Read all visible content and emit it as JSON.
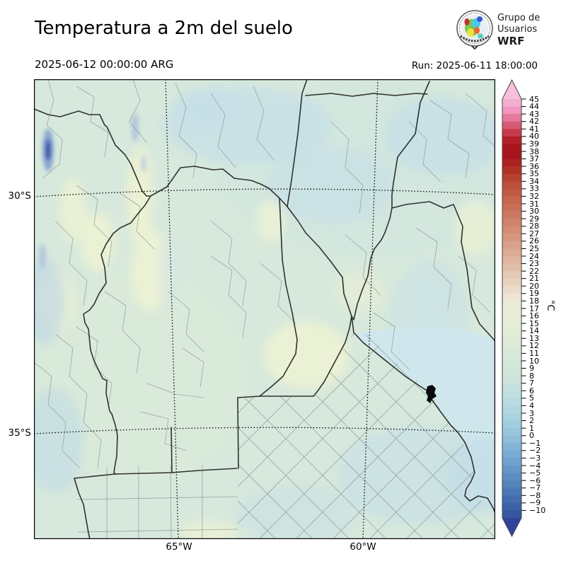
{
  "header": {
    "title": "Temperatura a 2m del suelo",
    "valid_time": "2025-06-12 00:00:00 ARG",
    "run_label": "Run: 2025-06-11 18:00:00"
  },
  "logo": {
    "line1": "Grupo de",
    "line2": "Usuarios",
    "line3": "WRF"
  },
  "axes": {
    "lat": [
      {
        "text": "30°S"
      },
      {
        "text": "35°S"
      }
    ],
    "lon": [
      {
        "text": "65°W"
      },
      {
        "text": "60°W"
      }
    ]
  },
  "colorbar": {
    "unit": "°C",
    "arrow_top_color": "#f8c0da",
    "arrow_bottom_color": "#31439b",
    "tick_labels": [
      "45",
      "44",
      "43",
      "42",
      "41",
      "40",
      "39",
      "38",
      "37",
      "36",
      "35",
      "34",
      "33",
      "32",
      "31",
      "30",
      "29",
      "28",
      "27",
      "26",
      "25",
      "24",
      "23",
      "22",
      "21",
      "20",
      "19",
      "18",
      "17",
      "16",
      "15",
      "14",
      "13",
      "12",
      "11",
      "10",
      "9",
      "8",
      "7",
      "6",
      "5",
      "4",
      "3",
      "2",
      "1",
      "0",
      "−1",
      "−2",
      "−3",
      "−4",
      "−5",
      "−6",
      "−7",
      "−8",
      "−9",
      "−10"
    ],
    "segment_colors": [
      "#f4aed0",
      "#ef97c0",
      "#e47a9e",
      "#d55a74",
      "#c53a4a",
      "#b42028",
      "#a8151a",
      "#a5131b",
      "#aa221d",
      "#b03226",
      "#b64130",
      "#bc503a",
      "#c05a44",
      "#c4654e",
      "#c86f58",
      "#cc7962",
      "#d0836c",
      "#d38d76",
      "#d69780",
      "#d9a18a",
      "#dcab94",
      "#dfb59f",
      "#e2bfaa",
      "#e5c9b5",
      "#e8d2bf",
      "#ebdcca",
      "#ede4d2",
      "#eaecd4",
      "#e9eed5",
      "#e7eed5",
      "#e5eed6",
      "#e3edd6",
      "#deebd7",
      "#d9e9d8",
      "#d6e8d9",
      "#d3e6da",
      "#d0e5da",
      "#cde4db",
      "#c6e1dc",
      "#bfdedf",
      "#b8dbe0",
      "#b1d7e1",
      "#aad3e2",
      "#a2cde1",
      "#99c6df",
      "#8fbedd",
      "#84b4d8",
      "#7aabd3",
      "#70a1ce",
      "#6697c8",
      "#5d8dc2",
      "#5483bc",
      "#4b78b5",
      "#436dae",
      "#3c62a7",
      "#3557a0"
    ]
  },
  "chart_data": {
    "type": "heatmap",
    "title": "Temperatura a 2m del suelo",
    "unit": "°C",
    "scale_min": -10,
    "scale_max": 45,
    "graticule": {
      "lats": [
        "30°S",
        "35°S"
      ],
      "lons": [
        "65°W",
        "60°W"
      ]
    },
    "map_temperature_summary": "Mapped region (central Argentina) shows values mostly between 3 and 13 °C: pale green ~8–13 °C over most land, light blue ~3–8 °C over NE, E and S areas and the Río de la Plata, pale yellow-green ~14–18 °C patches in the NW and center-west, and small dark blue spots near −5 °C over the Andes at the NW edge."
  }
}
